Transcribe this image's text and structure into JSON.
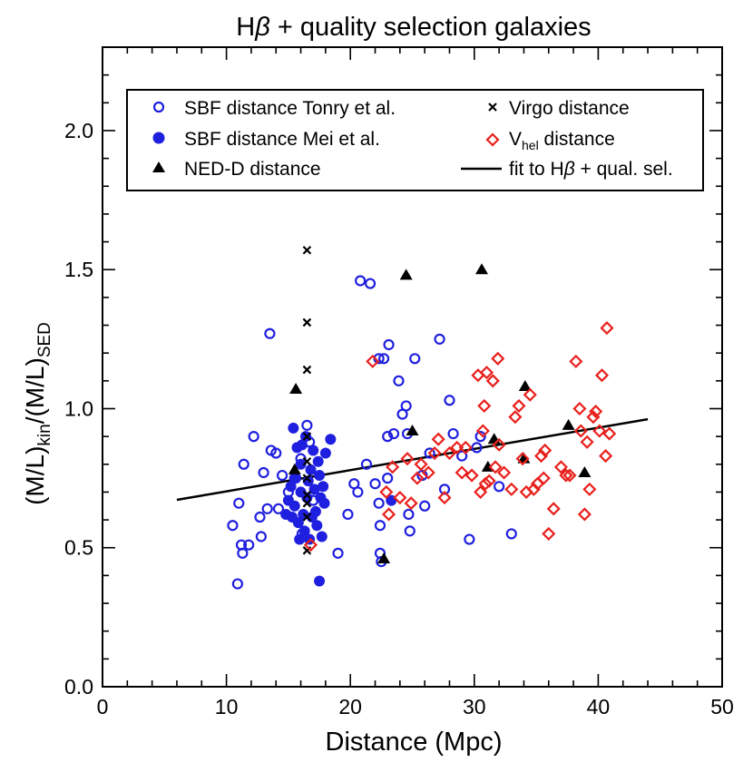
{
  "chart_data": {
    "type": "scatter",
    "title": "Hβ + quality selection galaxies",
    "title_parts": {
      "prefix": "H",
      "beta": "β",
      "suffix": " + quality selection galaxies"
    },
    "xlabel": "Distance (Mpc)",
    "ylabel_parts": {
      "open": "(M/L)",
      "sub1": "kin",
      "mid": "/(M/L)",
      "sub2": "SED"
    },
    "xlim": [
      0,
      50
    ],
    "ylim": [
      0.0,
      2.3
    ],
    "x_ticks": [
      0,
      10,
      20,
      30,
      40,
      50
    ],
    "x_tick_labels": [
      "0",
      "10",
      "20",
      "30",
      "40",
      "50"
    ],
    "y_ticks": [
      0.0,
      0.5,
      1.0,
      1.5,
      2.0
    ],
    "y_tick_labels": [
      "0.0",
      "0.5",
      "1.0",
      "1.5",
      "2.0"
    ],
    "legend": {
      "position": "top",
      "entries": [
        {
          "key": "sbf_tonry",
          "label": "SBF distance Tonry et al."
        },
        {
          "key": "sbf_mei",
          "label": "SBF distance Mei et al."
        },
        {
          "key": "ned",
          "label": "NED-D distance"
        },
        {
          "key": "virgo",
          "label": "Virgo distance"
        },
        {
          "key": "vhel",
          "label_parts": {
            "main": "V",
            "sub": "hel",
            "rest": " distance"
          }
        },
        {
          "key": "fit",
          "label_parts": {
            "prefix": "fit to H",
            "beta": "β",
            "suffix": " + qual. sel."
          }
        }
      ]
    },
    "colors": {
      "blue": "#1f1fdf",
      "red": "#e8201c",
      "black": "#000000"
    },
    "fit_line": {
      "x": [
        6.0,
        44.0
      ],
      "y": [
        0.672,
        0.962
      ]
    },
    "series": [
      {
        "name": "SBF distance Tonry et al.",
        "marker": "open-circle",
        "color": "#1f1fdf",
        "points": [
          [
            10.5,
            0.58
          ],
          [
            10.9,
            0.37
          ],
          [
            11.0,
            0.66
          ],
          [
            11.2,
            0.51
          ],
          [
            11.3,
            0.48
          ],
          [
            11.4,
            0.8
          ],
          [
            11.8,
            0.51
          ],
          [
            12.2,
            0.9
          ],
          [
            12.7,
            0.61
          ],
          [
            12.8,
            0.54
          ],
          [
            13.0,
            0.77
          ],
          [
            13.3,
            0.64
          ],
          [
            13.5,
            1.27
          ],
          [
            13.6,
            0.85
          ],
          [
            14.0,
            0.84
          ],
          [
            14.2,
            0.64
          ],
          [
            14.5,
            0.76
          ],
          [
            15.0,
            0.7
          ],
          [
            15.5,
            0.75
          ],
          [
            16.0,
            0.82
          ],
          [
            16.1,
            0.55
          ],
          [
            16.5,
            0.94
          ],
          [
            16.7,
            0.88
          ],
          [
            17.0,
            0.67
          ],
          [
            19.0,
            0.48
          ],
          [
            19.8,
            0.62
          ],
          [
            20.3,
            0.73
          ],
          [
            20.6,
            0.7
          ],
          [
            20.8,
            1.46
          ],
          [
            21.3,
            0.8
          ],
          [
            21.6,
            1.45
          ],
          [
            22.0,
            0.73
          ],
          [
            22.3,
            1.18
          ],
          [
            22.3,
            0.66
          ],
          [
            22.4,
            0.58
          ],
          [
            22.4,
            0.48
          ],
          [
            22.5,
            0.45
          ],
          [
            22.7,
            1.18
          ],
          [
            23.0,
            0.75
          ],
          [
            23.0,
            0.9
          ],
          [
            23.1,
            1.23
          ],
          [
            23.5,
            0.91
          ],
          [
            23.9,
            1.1
          ],
          [
            24.2,
            0.98
          ],
          [
            24.5,
            1.01
          ],
          [
            24.6,
            0.91
          ],
          [
            24.7,
            0.62
          ],
          [
            24.8,
            0.56
          ],
          [
            25.2,
            1.18
          ],
          [
            25.8,
            0.76
          ],
          [
            26.0,
            0.65
          ],
          [
            26.4,
            0.84
          ],
          [
            27.2,
            1.25
          ],
          [
            27.6,
            0.71
          ],
          [
            28.0,
            1.03
          ],
          [
            28.3,
            0.91
          ],
          [
            29.0,
            0.83
          ],
          [
            29.6,
            0.53
          ],
          [
            30.2,
            0.86
          ],
          [
            30.5,
            0.9
          ],
          [
            32.0,
            0.72
          ],
          [
            33.0,
            0.55
          ]
        ]
      },
      {
        "name": "SBF distance Mei et al.",
        "marker": "filled-circle",
        "color": "#1f1fdf",
        "points": [
          [
            14.8,
            0.62
          ],
          [
            15.0,
            0.67
          ],
          [
            15.2,
            0.72
          ],
          [
            15.3,
            0.61
          ],
          [
            15.4,
            0.93
          ],
          [
            15.5,
            0.65
          ],
          [
            15.6,
            0.75
          ],
          [
            15.7,
            0.86
          ],
          [
            15.8,
            0.59
          ],
          [
            15.9,
            0.53
          ],
          [
            16.0,
            0.7
          ],
          [
            16.0,
            0.8
          ],
          [
            16.1,
            0.87
          ],
          [
            16.2,
            0.62
          ],
          [
            16.3,
            0.56
          ],
          [
            16.4,
            0.9
          ],
          [
            16.5,
            0.68
          ],
          [
            16.6,
            0.74
          ],
          [
            16.7,
            0.53
          ],
          [
            16.8,
            0.78
          ],
          [
            16.9,
            0.61
          ],
          [
            17.0,
            0.85
          ],
          [
            17.1,
            0.71
          ],
          [
            17.2,
            0.63
          ],
          [
            17.3,
            0.58
          ],
          [
            17.4,
            0.81
          ],
          [
            17.5,
            0.76
          ],
          [
            17.6,
            0.68
          ],
          [
            17.7,
            0.54
          ],
          [
            17.8,
            0.72
          ],
          [
            17.9,
            0.66
          ],
          [
            18.0,
            0.84
          ],
          [
            18.4,
            0.89
          ],
          [
            17.5,
            0.38
          ],
          [
            23.3,
            0.67
          ]
        ]
      },
      {
        "name": "NED-D distance",
        "marker": "filled-triangle",
        "color": "#000000",
        "points": [
          [
            15.5,
            0.78
          ],
          [
            15.6,
            1.07
          ],
          [
            22.7,
            0.46
          ],
          [
            24.5,
            1.48
          ],
          [
            25.0,
            0.92
          ],
          [
            30.6,
            1.5
          ],
          [
            31.1,
            0.79
          ],
          [
            31.6,
            0.89
          ],
          [
            34.0,
            0.82
          ],
          [
            34.1,
            1.08
          ],
          [
            37.6,
            0.94
          ],
          [
            38.9,
            0.77
          ]
        ]
      },
      {
        "name": "Virgo distance",
        "marker": "x",
        "color": "#000000",
        "points": [
          [
            16.5,
            1.57
          ],
          [
            16.5,
            1.31
          ],
          [
            16.5,
            1.14
          ],
          [
            16.5,
            0.9
          ],
          [
            16.5,
            0.81
          ],
          [
            16.5,
            0.75
          ],
          [
            16.5,
            0.69
          ],
          [
            16.5,
            0.66
          ],
          [
            16.5,
            0.61
          ],
          [
            16.5,
            0.49
          ]
        ]
      },
      {
        "name": "Vhel distance",
        "marker": "open-diamond",
        "color": "#e8201c",
        "points": [
          [
            16.8,
            0.51
          ],
          [
            21.8,
            1.17
          ],
          [
            22.9,
            0.7
          ],
          [
            23.1,
            0.62
          ],
          [
            23.4,
            0.79
          ],
          [
            24.0,
            0.68
          ],
          [
            24.6,
            0.82
          ],
          [
            24.9,
            0.66
          ],
          [
            25.4,
            0.75
          ],
          [
            25.7,
            0.8
          ],
          [
            26.3,
            0.77
          ],
          [
            26.8,
            0.84
          ],
          [
            27.1,
            0.89
          ],
          [
            27.6,
            0.68
          ],
          [
            28.0,
            0.84
          ],
          [
            28.6,
            0.86
          ],
          [
            29.0,
            0.77
          ],
          [
            29.3,
            0.86
          ],
          [
            29.8,
            0.76
          ],
          [
            30.3,
            1.12
          ],
          [
            30.5,
            0.7
          ],
          [
            30.7,
            0.92
          ],
          [
            30.8,
            1.01
          ],
          [
            30.9,
            0.73
          ],
          [
            31.0,
            1.13
          ],
          [
            31.2,
            0.74
          ],
          [
            31.5,
            1.1
          ],
          [
            31.7,
            0.79
          ],
          [
            31.9,
            1.18
          ],
          [
            32.0,
            0.87
          ],
          [
            32.4,
            0.77
          ],
          [
            33.0,
            0.71
          ],
          [
            33.3,
            0.97
          ],
          [
            33.6,
            1.01
          ],
          [
            33.9,
            0.82
          ],
          [
            34.2,
            0.7
          ],
          [
            34.5,
            1.05
          ],
          [
            34.8,
            0.71
          ],
          [
            35.1,
            0.73
          ],
          [
            35.4,
            0.83
          ],
          [
            35.6,
            0.75
          ],
          [
            35.7,
            0.85
          ],
          [
            36.0,
            0.55
          ],
          [
            36.4,
            0.64
          ],
          [
            37.0,
            0.79
          ],
          [
            37.4,
            0.76
          ],
          [
            37.7,
            0.76
          ],
          [
            38.2,
            1.17
          ],
          [
            38.5,
            1.0
          ],
          [
            38.6,
            0.92
          ],
          [
            38.9,
            0.62
          ],
          [
            39.1,
            0.88
          ],
          [
            39.3,
            0.71
          ],
          [
            39.6,
            0.97
          ],
          [
            39.8,
            0.99
          ],
          [
            40.1,
            0.92
          ],
          [
            40.3,
            1.12
          ],
          [
            40.6,
            0.83
          ],
          [
            40.7,
            1.29
          ],
          [
            40.9,
            0.91
          ]
        ]
      }
    ]
  }
}
